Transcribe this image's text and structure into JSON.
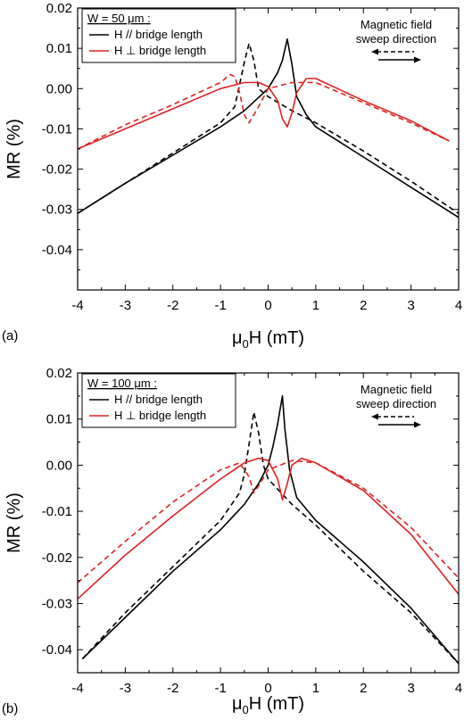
{
  "chart_data": [
    {
      "type": "line",
      "panel_label": "(a)",
      "xlabel_main": "μ",
      "xlabel_sub": "0",
      "xlabel_rest": "H (mT)",
      "ylabel": "MR (%)",
      "xlim": [
        -4,
        4
      ],
      "ylim": [
        -0.05,
        0.02
      ],
      "xticks": [
        -4,
        -3,
        -2,
        -1,
        0,
        1,
        2,
        3,
        4
      ],
      "yticks": [
        -0.04,
        -0.03,
        -0.02,
        -0.01,
        0.0,
        0.01,
        0.02
      ],
      "ytick_labels": [
        "-0.04",
        "-0.03",
        "-0.02",
        "-0.01",
        "0.00",
        "0.01",
        "0.02"
      ],
      "legend": {
        "title": "W = 50 μm :",
        "entries": [
          "H // bridge length",
          "H ⊥ bridge length"
        ]
      },
      "annotation": [
        "Magnetic field",
        "sweep direction"
      ],
      "series": [
        {
          "color": "#000000",
          "dash": false,
          "x": [
            -4,
            -3,
            -2,
            -1,
            -0.5,
            0,
            0.2,
            0.3,
            0.4,
            0.5,
            0.6,
            0.8,
            1,
            2,
            3,
            4
          ],
          "y": [
            -0.031,
            -0.0235,
            -0.0165,
            -0.0095,
            -0.0055,
            0.0,
            0.004,
            0.007,
            0.0123,
            0.006,
            -0.002,
            -0.0065,
            -0.0095,
            -0.017,
            -0.0245,
            -0.032
          ]
        },
        {
          "color": "#000000",
          "dash": true,
          "x": [
            -4,
            -3,
            -2,
            -1,
            -0.7,
            -0.6,
            -0.5,
            -0.4,
            -0.3,
            -0.2,
            0,
            0.5,
            1,
            2,
            3,
            4
          ],
          "y": [
            -0.031,
            -0.0235,
            -0.016,
            -0.0085,
            -0.0045,
            0.001,
            0.0065,
            0.0112,
            0.007,
            0.0,
            -0.002,
            -0.0055,
            -0.0085,
            -0.0155,
            -0.023,
            -0.031
          ]
        },
        {
          "color": "#e02020",
          "dash": false,
          "x": [
            -4,
            -3,
            -2,
            -1,
            -0.5,
            -0.2,
            0,
            0.2,
            0.3,
            0.4,
            0.5,
            0.6,
            0.8,
            1,
            2,
            3,
            3.8
          ],
          "y": [
            -0.015,
            -0.01,
            -0.005,
            0.0,
            0.0015,
            0.0015,
            0.0005,
            -0.003,
            -0.0075,
            -0.0095,
            -0.006,
            -0.001,
            0.0025,
            0.0025,
            -0.003,
            -0.008,
            -0.013
          ]
        },
        {
          "color": "#e02020",
          "dash": true,
          "x": [
            -4,
            -3,
            -2,
            -1,
            -0.9,
            -0.8,
            -0.7,
            -0.6,
            -0.5,
            -0.4,
            -0.2,
            0,
            0.5,
            1,
            2,
            3,
            3.8
          ],
          "y": [
            -0.015,
            -0.009,
            -0.004,
            0.0015,
            0.0025,
            0.0035,
            0.003,
            -0.001,
            -0.0065,
            -0.0085,
            -0.0045,
            0.0,
            0.0015,
            0.0015,
            -0.0035,
            -0.0085,
            -0.013
          ]
        }
      ]
    },
    {
      "type": "line",
      "panel_label": "(b)",
      "xlabel_main": "μ",
      "xlabel_sub": "0",
      "xlabel_rest": "H (mT)",
      "ylabel": "MR (%)",
      "xlim": [
        -4,
        4
      ],
      "ylim": [
        -0.045,
        0.02
      ],
      "xticks": [
        -4,
        -3,
        -2,
        -1,
        0,
        1,
        2,
        3,
        4
      ],
      "yticks": [
        -0.04,
        -0.03,
        -0.02,
        -0.01,
        0.0,
        0.01,
        0.02
      ],
      "ytick_labels": [
        "-0.04",
        "-0.03",
        "-0.02",
        "-0.01",
        "0.00",
        "0.01",
        "0.02"
      ],
      "legend": {
        "title": "W = 100 μm :",
        "entries": [
          "H // bridge length",
          "H ⊥ bridge length"
        ]
      },
      "annotation": [
        "Magnetic field",
        "sweep direction"
      ],
      "series": [
        {
          "color": "#000000",
          "dash": false,
          "x": [
            -3.9,
            -3,
            -2,
            -1,
            -0.5,
            -0.2,
            0,
            0.1,
            0.2,
            0.25,
            0.3,
            0.35,
            0.45,
            0.6,
            1,
            2,
            3,
            4
          ],
          "y": [
            -0.042,
            -0.033,
            -0.023,
            -0.014,
            -0.0085,
            -0.004,
            0.0,
            0.004,
            0.009,
            0.012,
            0.015,
            0.008,
            -0.001,
            -0.007,
            -0.012,
            -0.021,
            -0.031,
            -0.043
          ]
        },
        {
          "color": "#000000",
          "dash": true,
          "x": [
            -3.9,
            -3,
            -2,
            -1,
            -0.6,
            -0.5,
            -0.4,
            -0.3,
            -0.2,
            -0.1,
            0,
            0.5,
            1,
            2,
            3,
            4
          ],
          "y": [
            -0.042,
            -0.032,
            -0.022,
            -0.012,
            -0.006,
            -0.002,
            0.0045,
            0.0115,
            0.007,
            0.0,
            -0.003,
            -0.0085,
            -0.013,
            -0.023,
            -0.032,
            -0.043
          ]
        },
        {
          "color": "#e02020",
          "dash": false,
          "x": [
            -4,
            -3,
            -2,
            -1,
            -0.5,
            -0.2,
            0,
            0.2,
            0.3,
            0.4,
            0.5,
            0.7,
            1,
            2,
            3,
            4
          ],
          "y": [
            -0.029,
            -0.0195,
            -0.011,
            -0.003,
            0.0005,
            0.0015,
            0.001,
            -0.003,
            -0.0075,
            -0.004,
            0.0,
            0.0015,
            0.0005,
            -0.0055,
            -0.015,
            -0.028
          ]
        },
        {
          "color": "#e02020",
          "dash": true,
          "x": [
            -4,
            -3,
            -2,
            -1,
            -0.6,
            -0.4,
            -0.3,
            -0.2,
            0,
            0.5,
            1,
            2,
            3,
            4
          ],
          "y": [
            -0.0255,
            -0.0165,
            -0.008,
            -0.001,
            0.0005,
            -0.0025,
            -0.006,
            -0.0045,
            -0.001,
            0.001,
            0.0005,
            -0.005,
            -0.0135,
            -0.0245
          ]
        }
      ]
    }
  ]
}
